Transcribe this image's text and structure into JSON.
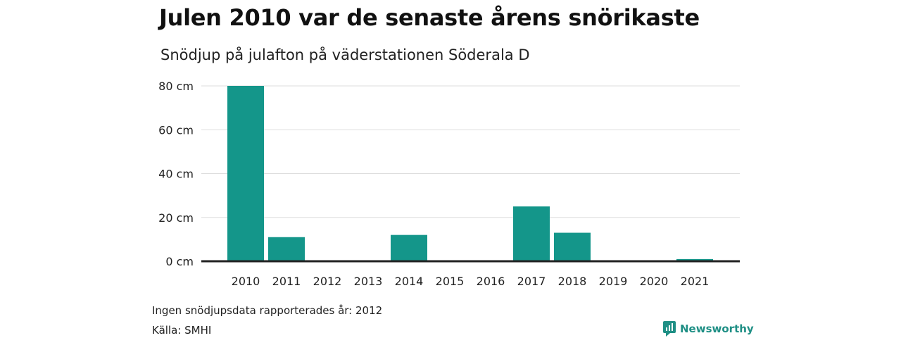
{
  "header": {
    "title": "Julen 2010 var de senaste årens snörikaste",
    "subtitle": "Snödjup på julafton på väderstationen Söderala D"
  },
  "footer": {
    "note": "Ingen snödjupsdata rapporterades år: 2012",
    "source": "Källa: SMHI",
    "brand": "Newsworthy"
  },
  "colors": {
    "bar": "#14968a",
    "grid": "#dddddd",
    "baseline": "#222222",
    "brand": "#1f8f85"
  },
  "chart_data": {
    "type": "bar",
    "title": "Julen 2010 var de senaste årens snörikaste",
    "subtitle": "Snödjup på julafton på väderstationen Söderala D",
    "categories": [
      "2010",
      "2011",
      "2012",
      "2013",
      "2014",
      "2015",
      "2016",
      "2017",
      "2018",
      "2019",
      "2020",
      "2021"
    ],
    "values": [
      80,
      11,
      null,
      0,
      12,
      0,
      0,
      25,
      13,
      0,
      0,
      1
    ],
    "ylim": [
      0,
      80
    ],
    "yticks": [
      0,
      20,
      40,
      60,
      80
    ],
    "ytick_labels": [
      "0 cm",
      "20 cm",
      "40 cm",
      "60 cm",
      "80 cm"
    ],
    "xlabel": "",
    "ylabel": "",
    "grid": true,
    "legend": "none"
  }
}
